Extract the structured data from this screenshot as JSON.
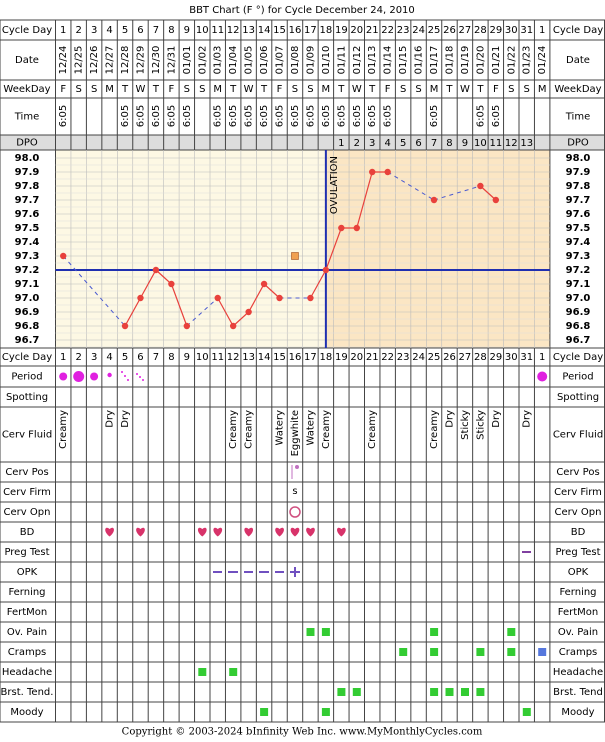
{
  "title": "BBT Chart (F °) for Cycle December 24, 2010",
  "header_labels": [
    "Cycle Day",
    "Date",
    "WeekDay",
    "Time",
    "DPO"
  ],
  "row_labels": [
    "Cycle Day",
    "Period",
    "Spotting",
    "Cerv Fluid",
    "Cerv Pos",
    "Cerv Firm",
    "Cerv Opn",
    "BD",
    "Preg Test",
    "OPK",
    "Ferning",
    "FertMon",
    "Ov. Pain",
    "Cramps",
    "Headache",
    "Brst. Tend.",
    "Moody"
  ],
  "row_labels_right": [
    "Cycle Day",
    "Period",
    "Spotting",
    "Cerv Fluid",
    "Cerv Pos",
    "Cerv Firm",
    "Cerv Opn",
    "BD",
    "Preg Test",
    "OPK",
    "Ferning",
    "FertMon",
    "Ov. Pain",
    "Cramps",
    "Headache",
    "Brst. Tend",
    "Moody"
  ],
  "cycle_days": [
    1,
    2,
    3,
    4,
    5,
    6,
    7,
    8,
    9,
    10,
    11,
    12,
    13,
    14,
    15,
    16,
    17,
    18,
    19,
    20,
    21,
    22,
    23,
    24,
    25,
    26,
    27,
    28,
    29,
    30,
    31,
    1
  ],
  "dates": [
    "12/24",
    "12/25",
    "12/26",
    "12/27",
    "12/28",
    "12/29",
    "12/30",
    "12/31",
    "01/01",
    "01/02",
    "01/03",
    "01/04",
    "01/05",
    "01/06",
    "01/07",
    "01/08",
    "01/09",
    "01/10",
    "01/11",
    "01/12",
    "01/13",
    "01/14",
    "01/15",
    "01/16",
    "01/17",
    "01/18",
    "01/19",
    "01/20",
    "01/21",
    "01/22",
    "01/23",
    "01/24"
  ],
  "weekdays": [
    "F",
    "S",
    "S",
    "M",
    "T",
    "W",
    "T",
    "F",
    "S",
    "S",
    "M",
    "T",
    "W",
    "T",
    "F",
    "S",
    "S",
    "M",
    "T",
    "W",
    "T",
    "F",
    "S",
    "S",
    "M",
    "T",
    "W",
    "T",
    "F",
    "S",
    "S",
    "M"
  ],
  "times": [
    "6:05",
    null,
    null,
    null,
    "6:05",
    "6:05",
    "6:05",
    "6:05",
    "6:05",
    null,
    "6:05",
    "6:05",
    "6:05",
    "6:05",
    "6:05",
    "6:05",
    "6:05",
    "6:05",
    "6:05",
    "6:05",
    "6:05",
    "6:05",
    null,
    null,
    "6:05",
    null,
    null,
    "6:05",
    "6:05",
    null,
    null,
    null
  ],
  "dpo": [
    null,
    null,
    null,
    null,
    null,
    null,
    null,
    null,
    null,
    null,
    null,
    null,
    null,
    null,
    null,
    null,
    null,
    null,
    1,
    2,
    3,
    4,
    5,
    6,
    7,
    8,
    9,
    10,
    11,
    12,
    13,
    null
  ],
  "cerv_fluid": [
    "Creamy",
    null,
    null,
    "Dry",
    "Dry",
    null,
    null,
    null,
    null,
    null,
    null,
    "Creamy",
    "Creamy",
    null,
    "Watery",
    "Eggwhite",
    "Watery",
    "Creamy",
    null,
    null,
    "Creamy",
    null,
    null,
    null,
    "Creamy",
    "Dry",
    "Sticky",
    "Sticky",
    "Dry",
    null,
    "Dry",
    null
  ],
  "cerv_firm_mark": "s",
  "footer": "Copyright © 2003-2024 bInfinity Web Inc.    www.MyMonthlyCycles.com",
  "chart_data": {
    "type": "line",
    "values": [
      97.3,
      null,
      null,
      null,
      96.8,
      97.0,
      97.2,
      97.1,
      96.8,
      null,
      97.0,
      96.8,
      96.9,
      97.1,
      97.0,
      null,
      97.0,
      97.2,
      97.5,
      97.5,
      97.9,
      97.9,
      null,
      null,
      97.7,
      null,
      null,
      97.8,
      97.7,
      null,
      null,
      null
    ],
    "discarded": [
      null,
      null,
      null,
      null,
      null,
      null,
      null,
      null,
      null,
      null,
      null,
      null,
      null,
      null,
      null,
      97.3,
      null,
      null,
      null,
      null,
      null,
      null,
      null,
      null,
      null,
      null,
      null,
      null,
      null,
      null,
      null,
      null
    ],
    "color": "#e8413c",
    "discarded_color": "#f0a050",
    "coverline": 97.2,
    "coverline_color": "#1f2fb0",
    "ovulation_day": 18,
    "annotation": "OVULATION",
    "ylim": [
      96.7,
      98.0
    ],
    "yticks": [
      {
        "value": 98.0,
        "label": "98.0"
      },
      97.9,
      97.8,
      97.7,
      97.6,
      97.5,
      97.4,
      97.3,
      97.2,
      97.1,
      {
        "value": 97.0,
        "label": "97.0"
      },
      96.9,
      96.8,
      96.7
    ]
  }
}
